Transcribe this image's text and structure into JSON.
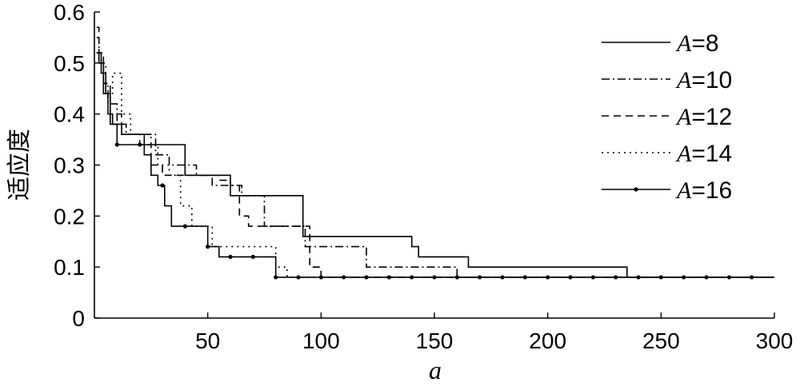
{
  "chart_data": {
    "type": "line",
    "step": true,
    "xlabel": "a",
    "ylabel": "适应度",
    "xlim": [
      0,
      300
    ],
    "ylim": [
      0,
      0.6
    ],
    "xticks": [
      50,
      100,
      150,
      200,
      250,
      300
    ],
    "yticks": [
      0,
      0.1,
      0.2,
      0.3,
      0.4,
      0.5,
      0.6
    ],
    "xtick_labels": [
      "50",
      "100",
      "150",
      "200",
      "250",
      "300"
    ],
    "ytick_labels": [
      "0",
      "0.1",
      "0.2",
      "0.3",
      "0.4",
      "0.5",
      "0.6"
    ],
    "grid": false,
    "legend_position": "top-right",
    "series": [
      {
        "name": "A=8",
        "name_var": "A",
        "name_value": "=8",
        "style": "solid",
        "x": [
          1,
          2,
          4,
          6,
          8,
          12,
          18,
          22,
          36,
          40,
          60,
          85,
          92,
          115,
          140,
          143,
          165,
          235,
          300
        ],
        "y": [
          0.52,
          0.5,
          0.44,
          0.4,
          0.38,
          0.36,
          0.36,
          0.34,
          0.34,
          0.28,
          0.24,
          0.24,
          0.16,
          0.16,
          0.14,
          0.12,
          0.1,
          0.08,
          0.08
        ]
      },
      {
        "name": "A=10",
        "name_var": "A",
        "name_value": "=10",
        "style": "dashdot",
        "x": [
          1,
          2,
          4,
          6,
          10,
          14,
          20,
          27,
          33,
          38,
          45,
          52,
          62,
          65,
          75,
          90,
          93,
          118,
          120,
          160,
          300
        ],
        "y": [
          0.55,
          0.5,
          0.46,
          0.42,
          0.38,
          0.36,
          0.36,
          0.32,
          0.3,
          0.3,
          0.28,
          0.26,
          0.26,
          0.24,
          0.18,
          0.18,
          0.14,
          0.14,
          0.1,
          0.08,
          0.08
        ]
      },
      {
        "name": "A=12",
        "name_var": "A",
        "name_value": "=12",
        "style": "dashed",
        "x": [
          1,
          2,
          4,
          7,
          12,
          18,
          20,
          25,
          30,
          37,
          42,
          50,
          55,
          60,
          64,
          68,
          80,
          95,
          100,
          300
        ],
        "y": [
          0.57,
          0.52,
          0.46,
          0.4,
          0.36,
          0.36,
          0.34,
          0.3,
          0.28,
          0.28,
          0.28,
          0.28,
          0.27,
          0.26,
          0.2,
          0.18,
          0.18,
          0.1,
          0.08,
          0.08
        ]
      },
      {
        "name": "A=14",
        "name_var": "A",
        "name_value": "=14",
        "style": "dotted",
        "x": [
          1,
          3,
          5,
          8,
          12,
          16,
          22,
          25,
          28,
          33,
          38,
          43,
          47,
          52,
          62,
          78,
          80,
          85,
          300
        ],
        "y": [
          0.52,
          0.5,
          0.44,
          0.48,
          0.4,
          0.36,
          0.36,
          0.34,
          0.3,
          0.28,
          0.22,
          0.18,
          0.18,
          0.14,
          0.14,
          0.14,
          0.1,
          0.08,
          0.08
        ]
      },
      {
        "name": "A=16",
        "name_var": "A",
        "name_value": "=16",
        "style": "solid-dot",
        "x": [
          1,
          3,
          5,
          7,
          10,
          15,
          20,
          22,
          25,
          28,
          31,
          34,
          40,
          45,
          50,
          55,
          60,
          70,
          76,
          80,
          300
        ],
        "y": [
          0.52,
          0.48,
          0.44,
          0.38,
          0.34,
          0.34,
          0.34,
          0.32,
          0.28,
          0.26,
          0.22,
          0.18,
          0.18,
          0.18,
          0.14,
          0.12,
          0.12,
          0.12,
          0.12,
          0.08,
          0.08
        ],
        "marker_x": [
          10,
          20,
          30,
          40,
          50,
          60,
          70,
          80,
          90,
          100,
          110,
          120,
          130,
          140,
          150,
          160,
          170,
          180,
          190,
          200,
          210,
          220,
          230,
          240,
          250,
          260,
          270,
          280,
          290
        ]
      }
    ]
  }
}
